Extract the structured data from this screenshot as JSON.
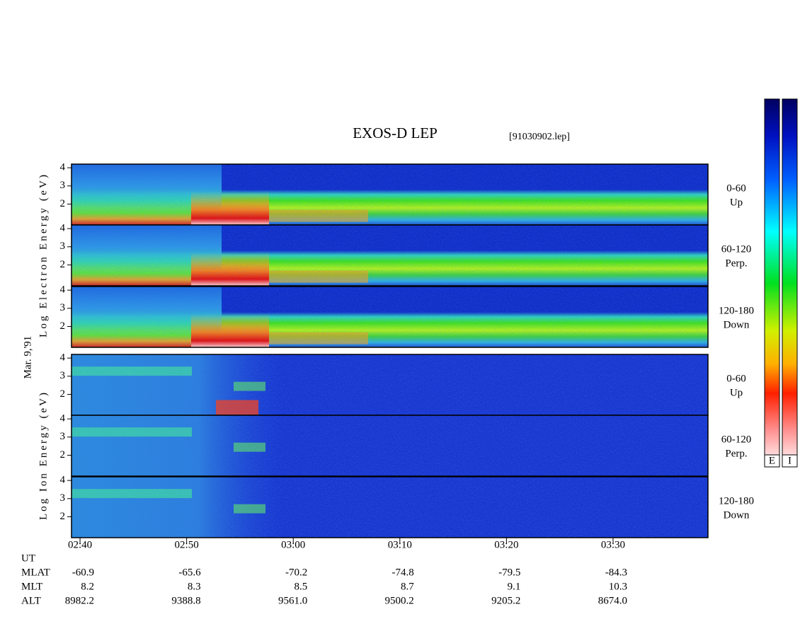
{
  "chart_data": {
    "type": "spectrogram",
    "title": "EXOS-D LEP",
    "subtitle": "[91030902.lep]",
    "date_label": "Mar. 9,'91",
    "group_labels": {
      "electron": "Log Electron Energy (eV)",
      "ion": "Log Ion Energy (eV)"
    },
    "ylim": [
      0.85,
      4.2
    ],
    "yticks": [
      2,
      3,
      4
    ],
    "xlim": [
      159.2,
      218.9
    ],
    "xticks": [
      {
        "value": 160,
        "label": "02:40"
      },
      {
        "value": 170,
        "label": "02:50"
      },
      {
        "value": 180,
        "label": "03:00"
      },
      {
        "value": 190,
        "label": "03:10"
      },
      {
        "value": 200,
        "label": "03:20"
      },
      {
        "value": 210,
        "label": "03:30"
      }
    ],
    "panels": [
      {
        "group": "electron",
        "angle": "0-60",
        "direction": "Up"
      },
      {
        "group": "electron",
        "angle": "60-120",
        "direction": "Perp."
      },
      {
        "group": "electron",
        "angle": "120-180",
        "direction": "Down"
      },
      {
        "group": "ion",
        "angle": "0-60",
        "direction": "Up"
      },
      {
        "group": "ion",
        "angle": "60-120",
        "direction": "Perp."
      },
      {
        "group": "ion",
        "angle": "120-180",
        "direction": "Down"
      }
    ],
    "ephemeris": {
      "row_labels": [
        "UT",
        "MLAT",
        "MLT",
        "ALT"
      ],
      "MLAT": [
        -60.9,
        -65.6,
        -70.2,
        -74.8,
        -79.5,
        -84.3
      ],
      "MLT": [
        8.2,
        8.3,
        8.5,
        8.7,
        9.1,
        10.3
      ],
      "ALT": [
        8982.2,
        9388.8,
        {
          "value": 9561,
          "label": "9561.0"
        },
        9500.2,
        9205.2,
        {
          "value": 8674,
          "label": "8674.0"
        }
      ]
    },
    "colorbar_labels": [
      "E",
      "I"
    ]
  }
}
